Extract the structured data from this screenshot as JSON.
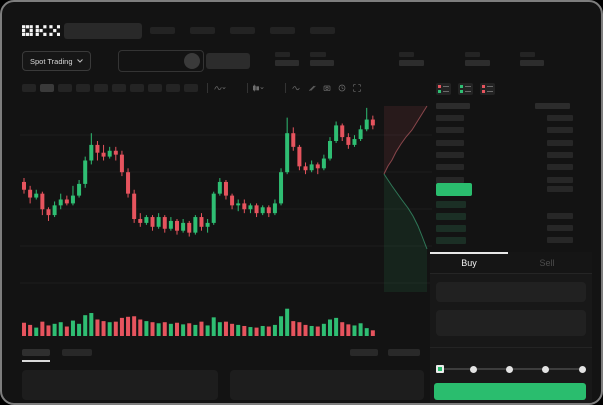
{
  "header": {
    "logo": "OKX",
    "search_placeholder": "",
    "nav_placeholder_count": 5,
    "stat_group_count": 5
  },
  "subheader": {
    "market_type_label": "Spot Trading",
    "market_type_chevron": "chevron-down-icon",
    "pair_select_chevron": "chevron-down-icon"
  },
  "chart_toolbar": {
    "timeframe_count": 10,
    "active_timeframe_index": 1,
    "tools": [
      "indicator-select",
      "chart-style-select",
      "line-tool-icon",
      "draw-icon",
      "camera-icon",
      "clock-icon",
      "fullscreen-icon"
    ]
  },
  "chart_data": {
    "type": "candlestick",
    "title": "",
    "price_scale": [
      0,
      100
    ],
    "grid": true,
    "up_color": "#2fbe73",
    "down_color": "#e6545e",
    "candles": [
      [
        59,
        61,
        53,
        55
      ],
      [
        55,
        57,
        48,
        51
      ],
      [
        51,
        55,
        50,
        53
      ],
      [
        53,
        54,
        42,
        45
      ],
      [
        45,
        46,
        39,
        42
      ],
      [
        42,
        49,
        41,
        47
      ],
      [
        47,
        53,
        45,
        50
      ],
      [
        50,
        52,
        47,
        48
      ],
      [
        48,
        57,
        47,
        52
      ],
      [
        52,
        60,
        51,
        58
      ],
      [
        58,
        72,
        56,
        70
      ],
      [
        70,
        84,
        68,
        78
      ],
      [
        78,
        80,
        70,
        74
      ],
      [
        74,
        78,
        70,
        72
      ],
      [
        72,
        77,
        71,
        75
      ],
      [
        75,
        77,
        70,
        73
      ],
      [
        73,
        75,
        62,
        64
      ],
      [
        64,
        66,
        51,
        53
      ],
      [
        53,
        55,
        38,
        40
      ],
      [
        40,
        43,
        36,
        38
      ],
      [
        38,
        42,
        37,
        41
      ],
      [
        41,
        42,
        34,
        36
      ],
      [
        36,
        43,
        35,
        41
      ],
      [
        41,
        42,
        33,
        35
      ],
      [
        35,
        41,
        34,
        39
      ],
      [
        39,
        40,
        32,
        34
      ],
      [
        34,
        40,
        33,
        38
      ],
      [
        38,
        39,
        31,
        33
      ],
      [
        33,
        42,
        32,
        41
      ],
      [
        41,
        43,
        34,
        36
      ],
      [
        36,
        40,
        33,
        38
      ],
      [
        38,
        54,
        37,
        53
      ],
      [
        53,
        61,
        52,
        59
      ],
      [
        59,
        60,
        50,
        52
      ],
      [
        52,
        53,
        45,
        47
      ],
      [
        47,
        50,
        44,
        48
      ],
      [
        48,
        50,
        43,
        45
      ],
      [
        45,
        48,
        43,
        47
      ],
      [
        47,
        48,
        41,
        43
      ],
      [
        43,
        47,
        42,
        46
      ],
      [
        46,
        47,
        41,
        43
      ],
      [
        43,
        50,
        42,
        48
      ],
      [
        48,
        66,
        47,
        64
      ],
      [
        64,
        92,
        63,
        84
      ],
      [
        84,
        87,
        75,
        77
      ],
      [
        77,
        78,
        65,
        67
      ],
      [
        67,
        69,
        63,
        65
      ],
      [
        65,
        70,
        64,
        68
      ],
      [
        68,
        69,
        63,
        66
      ],
      [
        66,
        73,
        65,
        71
      ],
      [
        71,
        82,
        70,
        80
      ],
      [
        80,
        90,
        79,
        88
      ],
      [
        88,
        89,
        80,
        82
      ],
      [
        82,
        84,
        76,
        78
      ],
      [
        78,
        83,
        77,
        81
      ],
      [
        81,
        88,
        80,
        86
      ],
      [
        86,
        97,
        85,
        91
      ],
      [
        91,
        93,
        86,
        88
      ]
    ],
    "volumes": [
      38,
      30,
      20,
      42,
      28,
      34,
      40,
      24,
      46,
      34,
      66,
      74,
      50,
      44,
      40,
      42,
      56,
      60,
      62,
      50,
      44,
      40,
      36,
      40,
      34,
      38,
      32,
      36,
      30,
      42,
      28,
      58,
      40,
      42,
      34,
      30,
      26,
      22,
      20,
      26,
      24,
      30,
      62,
      90,
      44,
      40,
      30,
      26,
      24,
      34,
      50,
      56,
      40,
      32,
      28,
      36,
      18,
      10
    ],
    "depth": {
      "asks": [
        [
          364,
          74
        ],
        [
          368,
          66
        ],
        [
          372,
          60
        ],
        [
          376,
          52
        ],
        [
          381,
          44
        ],
        [
          386,
          37
        ],
        [
          392,
          30
        ],
        [
          397,
          22
        ],
        [
          402,
          14
        ],
        [
          407,
          6
        ]
      ],
      "bids": [
        [
          364,
          74
        ],
        [
          368,
          80
        ],
        [
          372,
          86
        ],
        [
          377,
          93
        ],
        [
          382,
          100
        ],
        [
          388,
          108
        ],
        [
          393,
          116
        ],
        [
          398,
          126
        ],
        [
          402,
          136
        ],
        [
          407,
          149
        ]
      ]
    }
  },
  "order_book": {
    "view_icons": [
      "book-both-icon",
      "book-bids-icon",
      "book-asks-icon"
    ],
    "ask_row_count": 6,
    "bid_row_count": 4,
    "last_price_color": "#2abd6e"
  },
  "trade_panel": {
    "tabs": [
      {
        "label": "Buy",
        "active": true
      },
      {
        "label": "Sell",
        "active": false
      }
    ],
    "amount_fields": 2,
    "slider_stop_count": 5,
    "slider_value_index": 0,
    "submit_color": "#2abd6e"
  },
  "bottom_bar": {
    "tab_count": 2,
    "active_tab_index": 0,
    "right_pill_count": 2,
    "panel_count": 2
  },
  "colors": {
    "background": "#131313",
    "up": "#2fbe73",
    "down": "#e6545e",
    "accent_green": "#2abd6e"
  }
}
